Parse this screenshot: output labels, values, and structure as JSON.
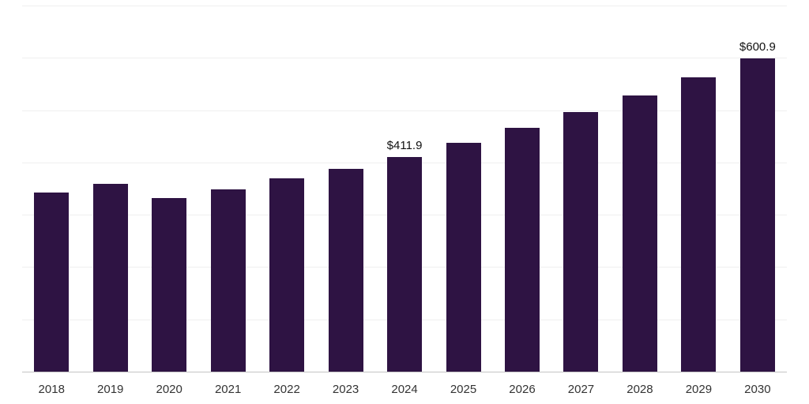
{
  "chart_data": {
    "type": "bar",
    "title": "",
    "xlabel": "",
    "ylabel": "",
    "ylim": [
      0,
      700
    ],
    "gridlines": [
      100,
      200,
      300,
      400,
      500,
      600,
      700
    ],
    "grid": "on",
    "legend": "none",
    "bar_color": "#2e1343",
    "categories": [
      "2018",
      "2019",
      "2020",
      "2021",
      "2022",
      "2023",
      "2024",
      "2025",
      "2026",
      "2027",
      "2028",
      "2029",
      "2030"
    ],
    "values": [
      344.0,
      361.0,
      334.0,
      350.0,
      371.0,
      390.0,
      411.9,
      438.7,
      467.2,
      497.6,
      529.9,
      564.4,
      600.9
    ],
    "annotations": [
      {
        "category": "2024",
        "text": "$411.9"
      },
      {
        "category": "2030",
        "text": "$600.9"
      }
    ]
  }
}
